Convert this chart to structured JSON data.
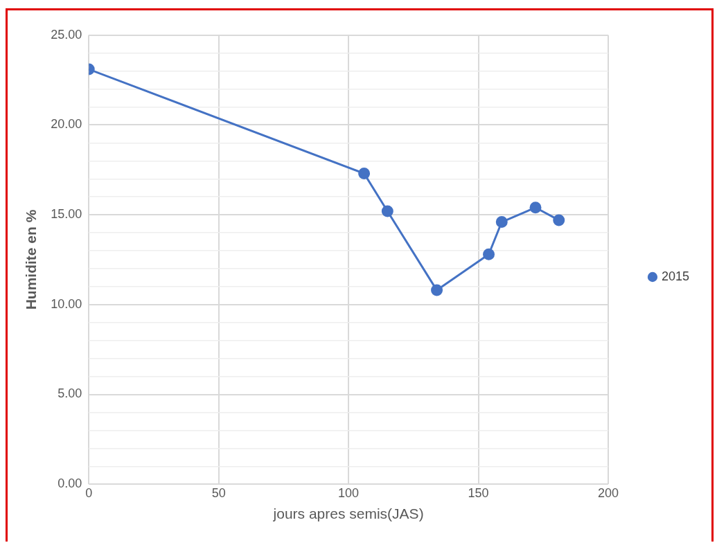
{
  "chart_data": {
    "type": "line",
    "xlabel": "jours apres semis(JAS)",
    "ylabel": "Humidite en %",
    "x": [
      0,
      106,
      115,
      134,
      154,
      159,
      172,
      181
    ],
    "series": [
      {
        "name": "2015",
        "color": "#4472c4",
        "values": [
          23.1,
          17.3,
          15.2,
          10.8,
          12.8,
          14.6,
          15.4,
          14.7
        ]
      }
    ],
    "xlim": [
      0,
      200
    ],
    "xticks": [
      0,
      50,
      100,
      150,
      200
    ],
    "ylim": [
      0,
      25
    ],
    "yticks": [
      {
        "value": 0,
        "label": "0.00"
      },
      {
        "value": 1,
        "label": null
      },
      {
        "value": 2,
        "label": null
      },
      {
        "value": 3,
        "label": null
      },
      {
        "value": 4,
        "label": null
      },
      {
        "value": 5,
        "label": "5.00"
      },
      {
        "value": 6,
        "label": null
      },
      {
        "value": 7,
        "label": null
      },
      {
        "value": 8,
        "label": null
      },
      {
        "value": 9,
        "label": null
      },
      {
        "value": 10,
        "label": "10.00"
      },
      {
        "value": 11,
        "label": null
      },
      {
        "value": 12,
        "label": null
      },
      {
        "value": 13,
        "label": null
      },
      {
        "value": 14,
        "label": null
      },
      {
        "value": 15,
        "label": "15.00"
      },
      {
        "value": 16,
        "label": null
      },
      {
        "value": 17,
        "label": null
      },
      {
        "value": 18,
        "label": null
      },
      {
        "value": 19,
        "label": null
      },
      {
        "value": 20,
        "label": "20.00"
      },
      {
        "value": 21,
        "label": null
      },
      {
        "value": 22,
        "label": null
      },
      {
        "value": 23,
        "label": null
      },
      {
        "value": 24,
        "label": null
      },
      {
        "value": 25,
        "label": "25.00"
      }
    ],
    "grid": true,
    "legend": "right",
    "marker": "circle",
    "line_style": "solid"
  }
}
